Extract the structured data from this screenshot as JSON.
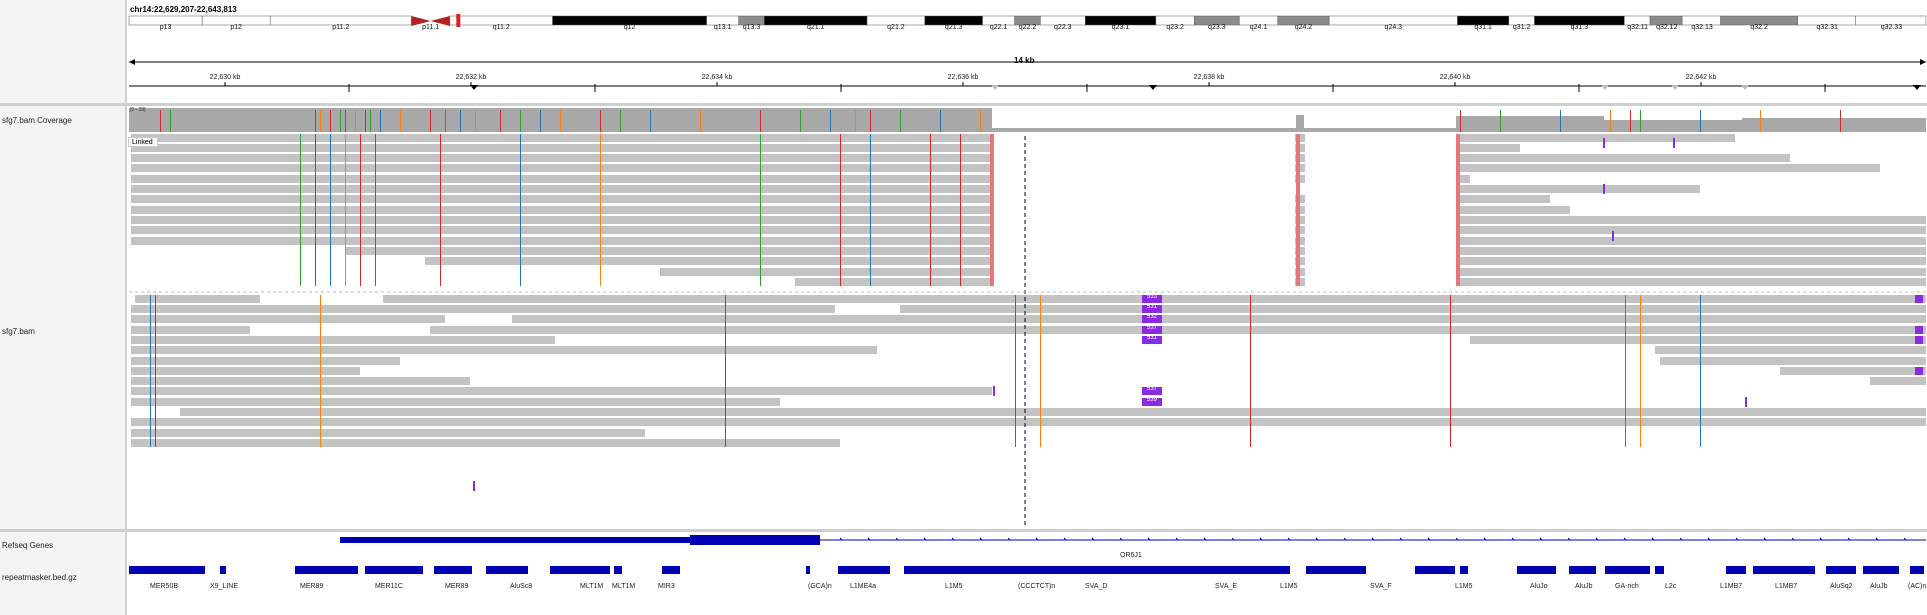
{
  "locus": "chr14:22,629,207-22,643,813",
  "ideogram": {
    "bands": [
      {
        "label": "p13",
        "start": 0,
        "end": 57,
        "shade": "white"
      },
      {
        "label": "p12",
        "start": 57,
        "end": 110,
        "shade": "white"
      },
      {
        "label": "p11.2",
        "start": 110,
        "end": 220,
        "shade": "white"
      },
      {
        "label": "p11.1",
        "start": 220,
        "end": 250,
        "shade": "centromere"
      },
      {
        "label": "q11.2",
        "start": 250,
        "end": 330,
        "shade": "white"
      },
      {
        "label": "q12",
        "start": 330,
        "end": 450,
        "shade": "black"
      },
      {
        "label": "q13.1",
        "start": 450,
        "end": 475,
        "shade": "white"
      },
      {
        "label": "q13.3",
        "start": 475,
        "end": 495,
        "shade": "gray"
      },
      {
        "label": "q21.1",
        "start": 495,
        "end": 575,
        "shade": "black"
      },
      {
        "label": "q21.2",
        "start": 575,
        "end": 620,
        "shade": "white"
      },
      {
        "label": "q21.3",
        "start": 620,
        "end": 665,
        "shade": "black"
      },
      {
        "label": "q22.1",
        "start": 665,
        "end": 690,
        "shade": "white"
      },
      {
        "label": "q22.2",
        "start": 690,
        "end": 710,
        "shade": "gray"
      },
      {
        "label": "q22.3",
        "start": 710,
        "end": 745,
        "shade": "white"
      },
      {
        "label": "q23.1",
        "start": 745,
        "end": 800,
        "shade": "black"
      },
      {
        "label": "q23.2",
        "start": 800,
        "end": 830,
        "shade": "white"
      },
      {
        "label": "q23.3",
        "start": 830,
        "end": 865,
        "shade": "gray"
      },
      {
        "label": "q24.1",
        "start": 865,
        "end": 895,
        "shade": "white"
      },
      {
        "label": "q24.2",
        "start": 895,
        "end": 935,
        "shade": "gray"
      },
      {
        "label": "q24.3",
        "start": 935,
        "end": 1035,
        "shade": "white"
      },
      {
        "label": "q31.1",
        "start": 1035,
        "end": 1075,
        "shade": "black"
      },
      {
        "label": "q31.2",
        "start": 1075,
        "end": 1095,
        "shade": "white"
      },
      {
        "label": "q31.3",
        "start": 1095,
        "end": 1165,
        "shade": "black"
      },
      {
        "label": "q32.11",
        "start": 1165,
        "end": 1185,
        "shade": "white"
      },
      {
        "label": "q32.12",
        "start": 1185,
        "end": 1210,
        "shade": "gray"
      },
      {
        "label": "q32.13",
        "start": 1210,
        "end": 1240,
        "shade": "white"
      },
      {
        "label": "q32.2",
        "start": 1240,
        "end": 1300,
        "shade": "gray"
      },
      {
        "label": "q32.31",
        "start": 1300,
        "end": 1345,
        "shade": "white"
      },
      {
        "label": "q32.33",
        "start": 1345,
        "end": 1400,
        "shade": "white"
      }
    ]
  },
  "ruler": {
    "span": "14 kb",
    "ticks": [
      "22,630 kb",
      "22,632 kb",
      "22,634 kb",
      "22,636 kb",
      "22,638 kb",
      "22,640 kb",
      "22,642 kb"
    ]
  },
  "tracks": {
    "coverage": {
      "name": "sfg7.bam Coverage",
      "range": "[0 - 39]"
    },
    "alignments": {
      "name": "sfg7.bam",
      "linked_label": "Linked"
    },
    "refseq": {
      "name": "Refseq Genes",
      "gene": "OR6J1"
    },
    "repeatmasker": {
      "name": "repeatmasker.bed.gz"
    }
  },
  "insertion_labels": [
    "533",
    "531",
    "532",
    "537",
    "531",
    "537",
    "539"
  ],
  "repeats": [
    "MER50B",
    "X9_LINE",
    "MER89",
    "MER11C",
    "MER89",
    "AluSc8",
    "MLT1M",
    "MLT1M",
    "MIR3",
    "(GCA)n",
    "L1ME4a",
    "L1M5",
    "(CCCTCT)n",
    "SVA_D",
    "SVA_E",
    "L1M5",
    "SVA_F",
    "L1M5",
    "AluJo",
    "AluJb",
    "GA-rich",
    "L2c",
    "L1MB7",
    "L1MB7",
    "AluSq2",
    "AluJb",
    "(AC)n"
  ],
  "colors": {
    "read": "#c3c3c3",
    "coverage": "#a8a8a8",
    "gene": "#0000b2",
    "insertion": "#8a2be2",
    "deletion_edge": "#e03c3c"
  }
}
